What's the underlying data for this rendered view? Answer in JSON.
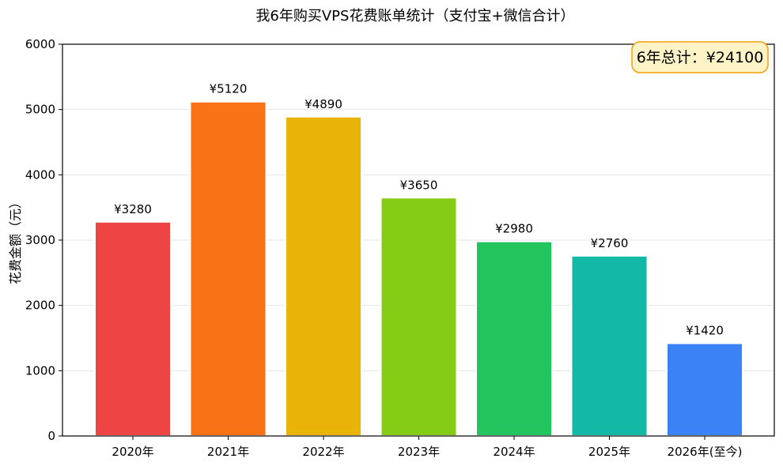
{
  "chart_data": {
    "type": "bar",
    "title": "我6年购买VPS花费账单统计（支付宝+微信合计）",
    "xlabel": "",
    "ylabel": "花费金额（元）",
    "categories": [
      "2020年",
      "2021年",
      "2022年",
      "2023年",
      "2024年",
      "2025年",
      "2026年(至今)"
    ],
    "values": [
      3280,
      5120,
      4890,
      3650,
      2980,
      2760,
      1420
    ],
    "value_labels": [
      "¥3280",
      "¥5120",
      "¥4890",
      "¥3650",
      "¥2980",
      "¥2760",
      "¥1420"
    ],
    "colors": [
      "#ef4444",
      "#f97316",
      "#eab308",
      "#84cc16",
      "#22c55e",
      "#14b8a6",
      "#3b82f6"
    ],
    "ylim": [
      0,
      6000
    ],
    "yticks": [
      0,
      1000,
      2000,
      3000,
      4000,
      5000,
      6000
    ],
    "ytick_labels": [
      "0",
      "1000",
      "2000",
      "3000",
      "4000",
      "5000",
      "6000"
    ],
    "grid": "horizontal",
    "annotation": {
      "text": "6年总计：¥24100",
      "placement": "top-right",
      "fill": "#fef3c7",
      "border": "#f59e0b"
    }
  }
}
